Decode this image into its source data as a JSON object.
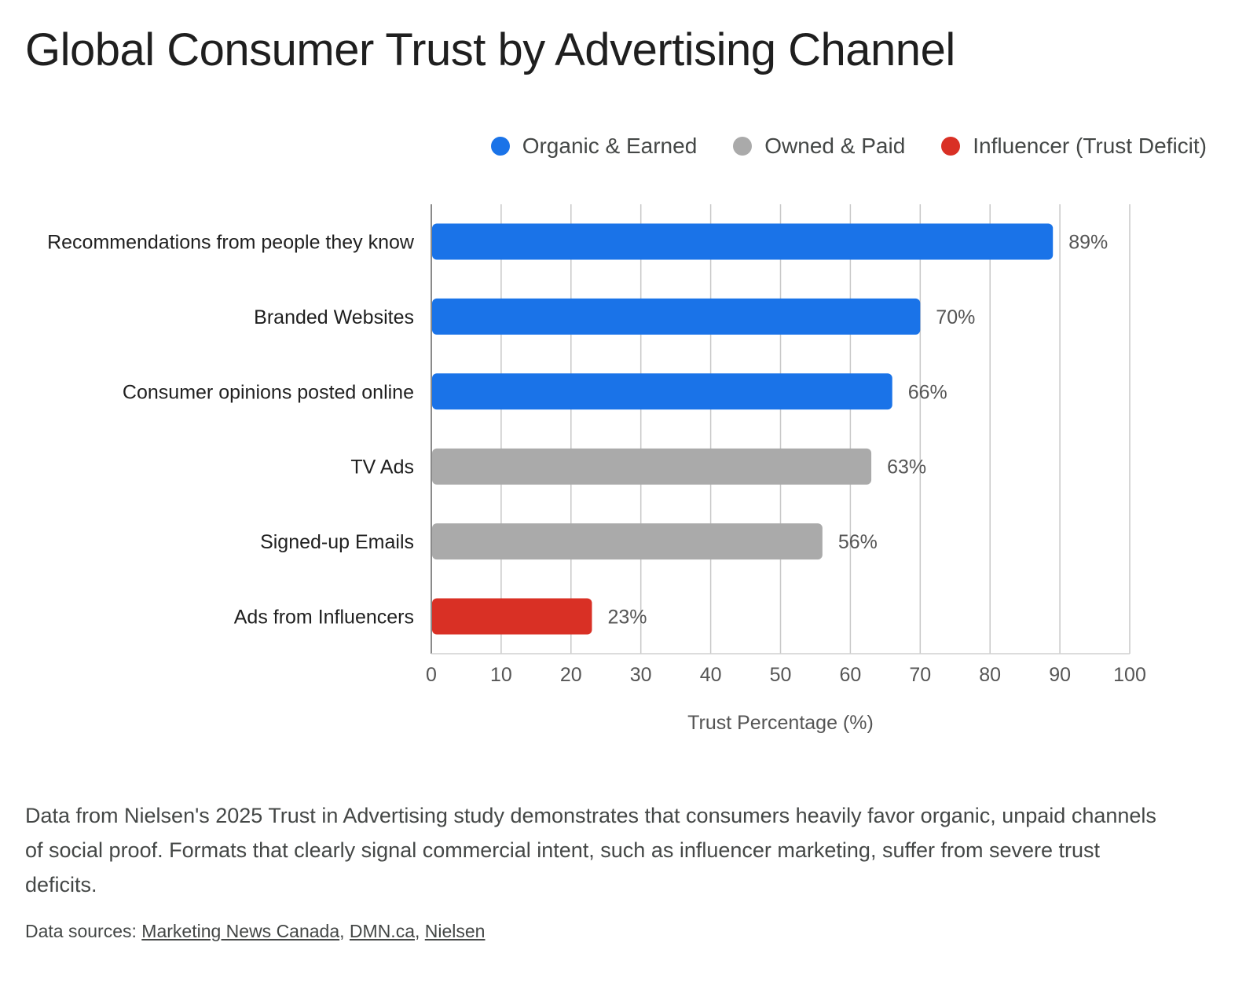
{
  "title": "Global Consumer Trust by Advertising Channel",
  "legend": [
    {
      "label": "Organic & Earned",
      "color": "#1a73e8"
    },
    {
      "label": "Owned & Paid",
      "color": "#aaaaaa"
    },
    {
      "label": "Influencer (Trust Deficit)",
      "color": "#d93025"
    }
  ],
  "chart_data": {
    "type": "bar",
    "orientation": "horizontal",
    "categories": [
      "Recommendations from people they know",
      "Branded Websites",
      "Consumer opinions posted online",
      "TV Ads",
      "Signed-up Emails",
      "Ads from Influencers"
    ],
    "values": [
      89,
      70,
      66,
      63,
      56,
      23
    ],
    "value_labels": [
      "89%",
      "70%",
      "66%",
      "63%",
      "56%",
      "23%"
    ],
    "bar_groups": [
      "Organic & Earned",
      "Organic & Earned",
      "Organic & Earned",
      "Owned & Paid",
      "Owned & Paid",
      "Influencer (Trust Deficit)"
    ],
    "xlabel": "Trust Percentage (%)",
    "xlim": [
      0,
      100
    ],
    "xticks": [
      0,
      10,
      20,
      30,
      40,
      50,
      60,
      70,
      80,
      90,
      100
    ],
    "grid": true,
    "legend_position": "top-right"
  },
  "description": "Data from Nielsen's 2025 Trust in Advertising study demonstrates that consumers heavily favor organic, unpaid channels of social proof. Formats that clearly signal commercial intent, such as influencer marketing, suffer from severe trust deficits.",
  "sources": {
    "prefix": "Data sources: ",
    "links": [
      "Marketing News Canada",
      "DMN.ca",
      "Nielsen"
    ],
    "separator": ", "
  }
}
